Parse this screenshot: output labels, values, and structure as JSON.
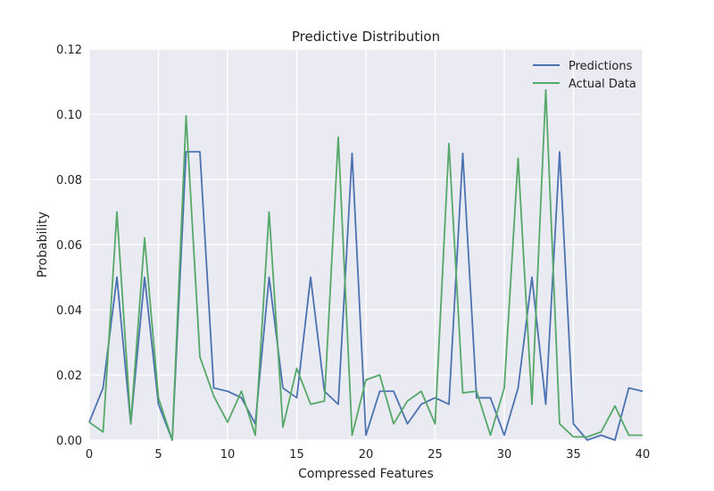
{
  "chart_data": {
    "type": "line",
    "title": "Predictive Distribution",
    "xlabel": "Compressed Features",
    "ylabel": "Probability",
    "xlim": [
      0,
      40
    ],
    "ylim": [
      0.0,
      0.12
    ],
    "xticks": [
      0,
      5,
      10,
      15,
      20,
      25,
      30,
      35,
      40
    ],
    "xtick_labels": [
      "0",
      "5",
      "10",
      "15",
      "20",
      "25",
      "30",
      "35",
      "40"
    ],
    "yticks": [
      0.0,
      0.02,
      0.04,
      0.06,
      0.08,
      0.1,
      0.12
    ],
    "ytick_labels": [
      "0.00",
      "0.02",
      "0.04",
      "0.06",
      "0.08",
      "0.10",
      "0.12"
    ],
    "grid": true,
    "legend_position": "top-right",
    "x": [
      0,
      1,
      2,
      3,
      4,
      5,
      6,
      7,
      8,
      9,
      10,
      11,
      12,
      13,
      14,
      15,
      16,
      17,
      18,
      19,
      20,
      21,
      22,
      23,
      24,
      25,
      26,
      27,
      28,
      29,
      30,
      31,
      32,
      33,
      34,
      35,
      36,
      37,
      38,
      39,
      40
    ],
    "series": [
      {
        "name": "Predictions",
        "color": "#4c72b0",
        "values": [
          0.0055,
          0.016,
          0.05,
          0.005,
          0.05,
          0.011,
          0.0,
          0.0885,
          0.0885,
          0.016,
          0.015,
          0.013,
          0.005,
          0.05,
          0.016,
          0.013,
          0.05,
          0.015,
          0.011,
          0.088,
          0.0015,
          0.015,
          0.015,
          0.005,
          0.011,
          0.013,
          0.011,
          0.088,
          0.013,
          0.013,
          0.0015,
          0.016,
          0.05,
          0.011,
          0.0885,
          0.005,
          0.0,
          0.0015,
          0.0,
          0.016,
          0.015
        ]
      },
      {
        "name": "Actual Data",
        "color": "#55a868",
        "values": [
          0.0055,
          0.0025,
          0.07,
          0.005,
          0.062,
          0.013,
          0.0,
          0.0995,
          0.0255,
          0.0135,
          0.0055,
          0.015,
          0.0015,
          0.07,
          0.004,
          0.022,
          0.011,
          0.012,
          0.093,
          0.0015,
          0.0185,
          0.02,
          0.005,
          0.012,
          0.015,
          0.005,
          0.091,
          0.0145,
          0.015,
          0.0015,
          0.016,
          0.0865,
          0.011,
          0.1075,
          0.005,
          0.001,
          0.001,
          0.0025,
          0.0105,
          0.0015,
          0.0015
        ]
      }
    ]
  }
}
